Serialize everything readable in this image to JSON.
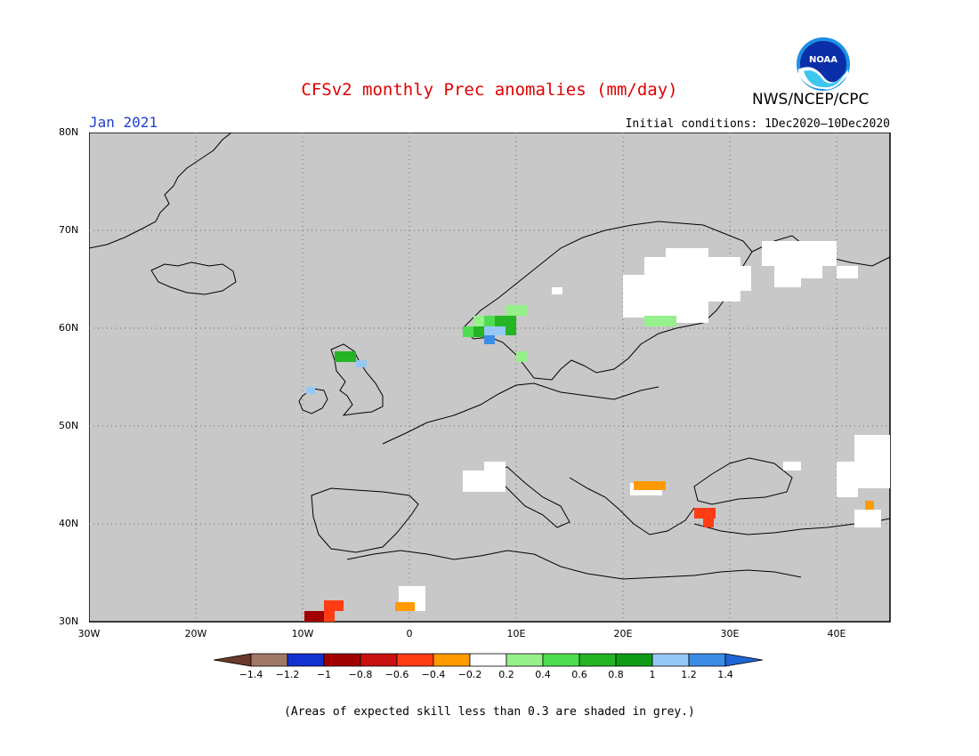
{
  "header": {
    "title": "CFSv2 monthly Prec anomalies (mm/day)",
    "month": "Jan 2021",
    "initial_conditions": "Initial conditions: 1Dec2020–10Dec2020",
    "agency": "NWS/NCEP/CPC",
    "logo_text": "NOAA"
  },
  "map": {
    "extent": {
      "lon": [
        -30,
        45
      ],
      "lat": [
        30,
        80
      ]
    },
    "background_color": "#c8c8c8",
    "lat_labels": [
      "80N",
      "70N",
      "60N",
      "50N",
      "40N",
      "30N"
    ],
    "lon_labels": [
      "30W",
      "20W",
      "10W",
      "0",
      "10E",
      "20E",
      "30E",
      "40E"
    ],
    "grid": true
  },
  "legend": {
    "ticks": [
      "-1.4",
      "-1.2",
      "-1",
      "-0.8",
      "-0.6",
      "-0.4",
      "-0.2",
      "0.2",
      "0.4",
      "0.6",
      "0.8",
      "1",
      "1.2",
      "1.4"
    ],
    "colors": [
      "#6b3a2a",
      "#a07868",
      "#1232cf",
      "#a00000",
      "#c81010",
      "#ff3c14",
      "#ff9a00",
      "#ffffff",
      "#96f08c",
      "#50dc50",
      "#24b424",
      "#0f9b14",
      "#96c8f5",
      "#3c8ce6",
      "#1e64d2"
    ]
  },
  "note": "(Areas of expected skill less than 0.3 are shaded in grey.)"
}
